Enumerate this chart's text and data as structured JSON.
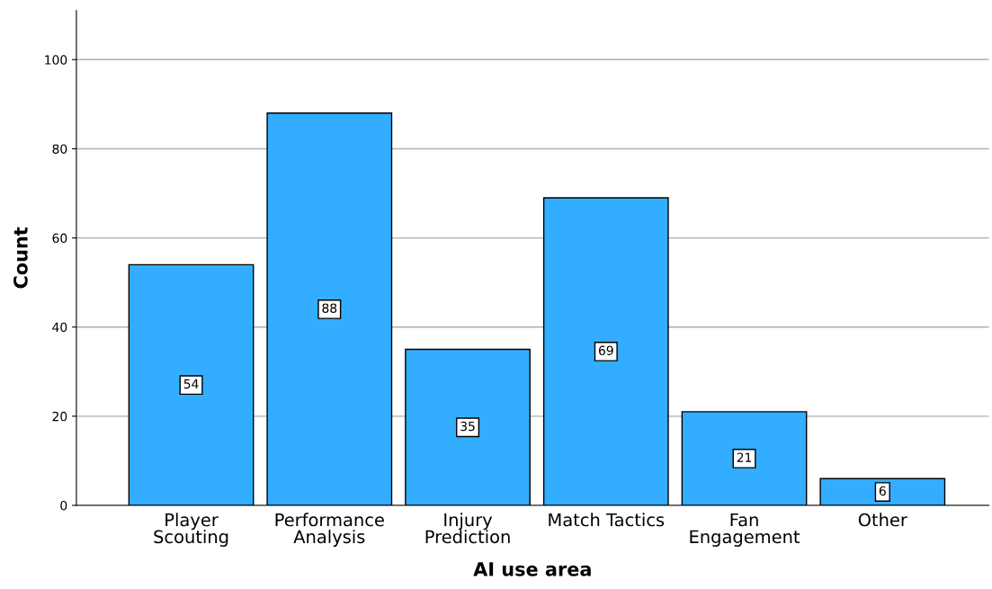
{
  "chart_data": {
    "type": "bar",
    "xlabel": "AI use area",
    "ylabel": "Count",
    "categories": [
      "Player\nScouting",
      "Performance\nAnalysis",
      "Injury\nPrediction",
      "Match Tactics",
      "Fan\nEngagement",
      "Other"
    ],
    "values": [
      54,
      88,
      35,
      69,
      21,
      6
    ],
    "color": "#33adff",
    "ylim": [
      0,
      111
    ],
    "yticks": [
      0,
      20,
      40,
      60,
      80,
      100
    ],
    "grid": "y",
    "data_labels": true
  }
}
